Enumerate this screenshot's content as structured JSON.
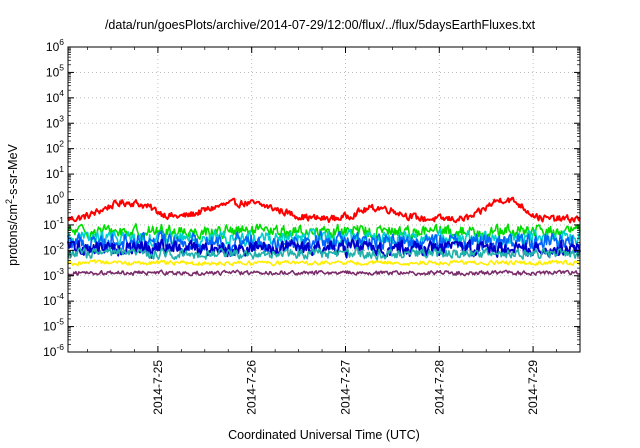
{
  "chart_data": {
    "type": "line",
    "title": "/data/run/goesPlots/archive/2014-07-29/12:00/flux/../flux/5daysEarthFluxes.txt",
    "xlabel": "Coordinated Universal Time (UTC)",
    "ylabel": {
      "pre": "protons/cm",
      "sup": "2",
      "post": "-s-sr-MeV"
    },
    "y_scale": "log",
    "ylim": [
      1e-06,
      1000000.0
    ],
    "y_ticks": [
      {
        "base": "10",
        "exp": "-6"
      },
      {
        "base": "10",
        "exp": "-5"
      },
      {
        "base": "10",
        "exp": "-4"
      },
      {
        "base": "10",
        "exp": "-3"
      },
      {
        "base": "10",
        "exp": "-2"
      },
      {
        "base": "10",
        "exp": "-1"
      },
      {
        "base": "10",
        "exp": "0"
      },
      {
        "base": "10",
        "exp": "1"
      },
      {
        "base": "10",
        "exp": "2"
      },
      {
        "base": "10",
        "exp": "3"
      },
      {
        "base": "10",
        "exp": "4"
      },
      {
        "base": "10",
        "exp": "5"
      },
      {
        "base": "10",
        "exp": "6"
      }
    ],
    "xlim": [
      "2014-07-24 01:00",
      "2014-07-29 12:00"
    ],
    "x_ticks": [
      "2014-7-25",
      "2014-7-26",
      "2014-7-27",
      "2014-7-28",
      "2014-7-29"
    ],
    "grid": true,
    "legend": "none",
    "series": [
      {
        "color": "#ff0000",
        "base": 0.17,
        "noise": 0.25,
        "bumps": [
          {
            "day": 0.68,
            "amp": 0.6,
            "w": 0.28
          },
          {
            "day": 1.9,
            "amp": 0.55,
            "w": 0.4
          },
          {
            "day": 3.35,
            "amp": 0.3,
            "w": 0.25
          },
          {
            "day": 4.7,
            "amp": 0.85,
            "w": 0.2
          }
        ]
      },
      {
        "color": "#00dd00",
        "base": 0.055,
        "noise": 0.45,
        "bumps": []
      },
      {
        "color": "#00d0d0",
        "base": 0.03,
        "noise": 0.5,
        "bumps": []
      },
      {
        "color": "#0066ff",
        "base": 0.022,
        "noise": 0.6,
        "bumps": []
      },
      {
        "color": "#0000cc",
        "base": 0.012,
        "noise": 0.55,
        "bumps": []
      },
      {
        "color": "#20b2aa",
        "base": 0.0075,
        "noise": 0.35,
        "bumps": []
      },
      {
        "color": "#ffee00",
        "base": 0.0032,
        "noise": 0.15,
        "bumps": []
      },
      {
        "color": "#7b2d6b",
        "base": 0.0013,
        "noise": 0.15,
        "bumps": []
      }
    ]
  }
}
